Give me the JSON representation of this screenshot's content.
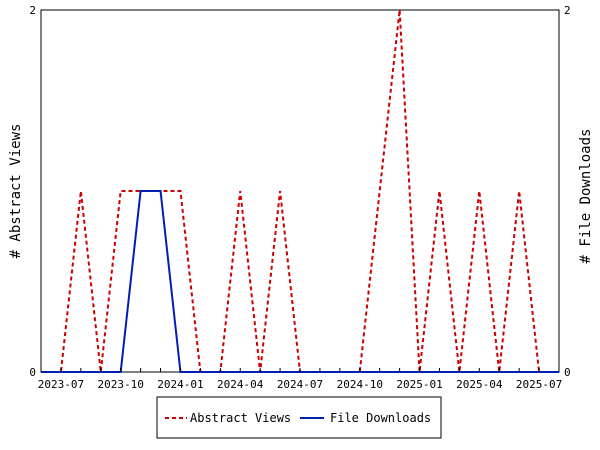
{
  "chart_data": {
    "type": "line",
    "xlabel": "",
    "ylabel_left": "# Abstract Views",
    "ylabel_right": "# File Downloads",
    "x_tick_labels": [
      "2023-07",
      "2023-10",
      "2024-01",
      "2024-04",
      "2024-07",
      "2024-10",
      "2025-01",
      "2025-04",
      "2025-07"
    ],
    "y_left_ticks": [
      "0",
      "2"
    ],
    "y_right_ticks": [
      "0",
      "2"
    ],
    "ylim_left": [
      0,
      2
    ],
    "ylim_right": [
      0,
      2
    ],
    "x": [
      "2023-06",
      "2023-07",
      "2023-08",
      "2023-09",
      "2023-10",
      "2023-11",
      "2023-12",
      "2024-01",
      "2024-02",
      "2024-03",
      "2024-04",
      "2024-05",
      "2024-06",
      "2024-07",
      "2024-08",
      "2024-09",
      "2024-10",
      "2024-11",
      "2024-12",
      "2025-01",
      "2025-02",
      "2025-03",
      "2025-04",
      "2025-05",
      "2025-06",
      "2025-07",
      "2025-08"
    ],
    "series": [
      {
        "name": "Abstract Views",
        "axis": "left",
        "color": "#cc0000",
        "dash": "dashed",
        "values": [
          0,
          0,
          1,
          0,
          1,
          1,
          1,
          1,
          0,
          0,
          1,
          0,
          1,
          0,
          0,
          0,
          0,
          1,
          2,
          0,
          1,
          0,
          1,
          0,
          1,
          0,
          0
        ]
      },
      {
        "name": "File Downloads",
        "axis": "right",
        "color": "#001eb4",
        "dash": "solid",
        "values": [
          0,
          0,
          0,
          0,
          0,
          1,
          1,
          0,
          0,
          0,
          0,
          0,
          0,
          0,
          0,
          0,
          0,
          0,
          0,
          0,
          0,
          0,
          0,
          0,
          0,
          0,
          0
        ]
      }
    ],
    "grid": false,
    "legend_position": "bottom-center"
  }
}
